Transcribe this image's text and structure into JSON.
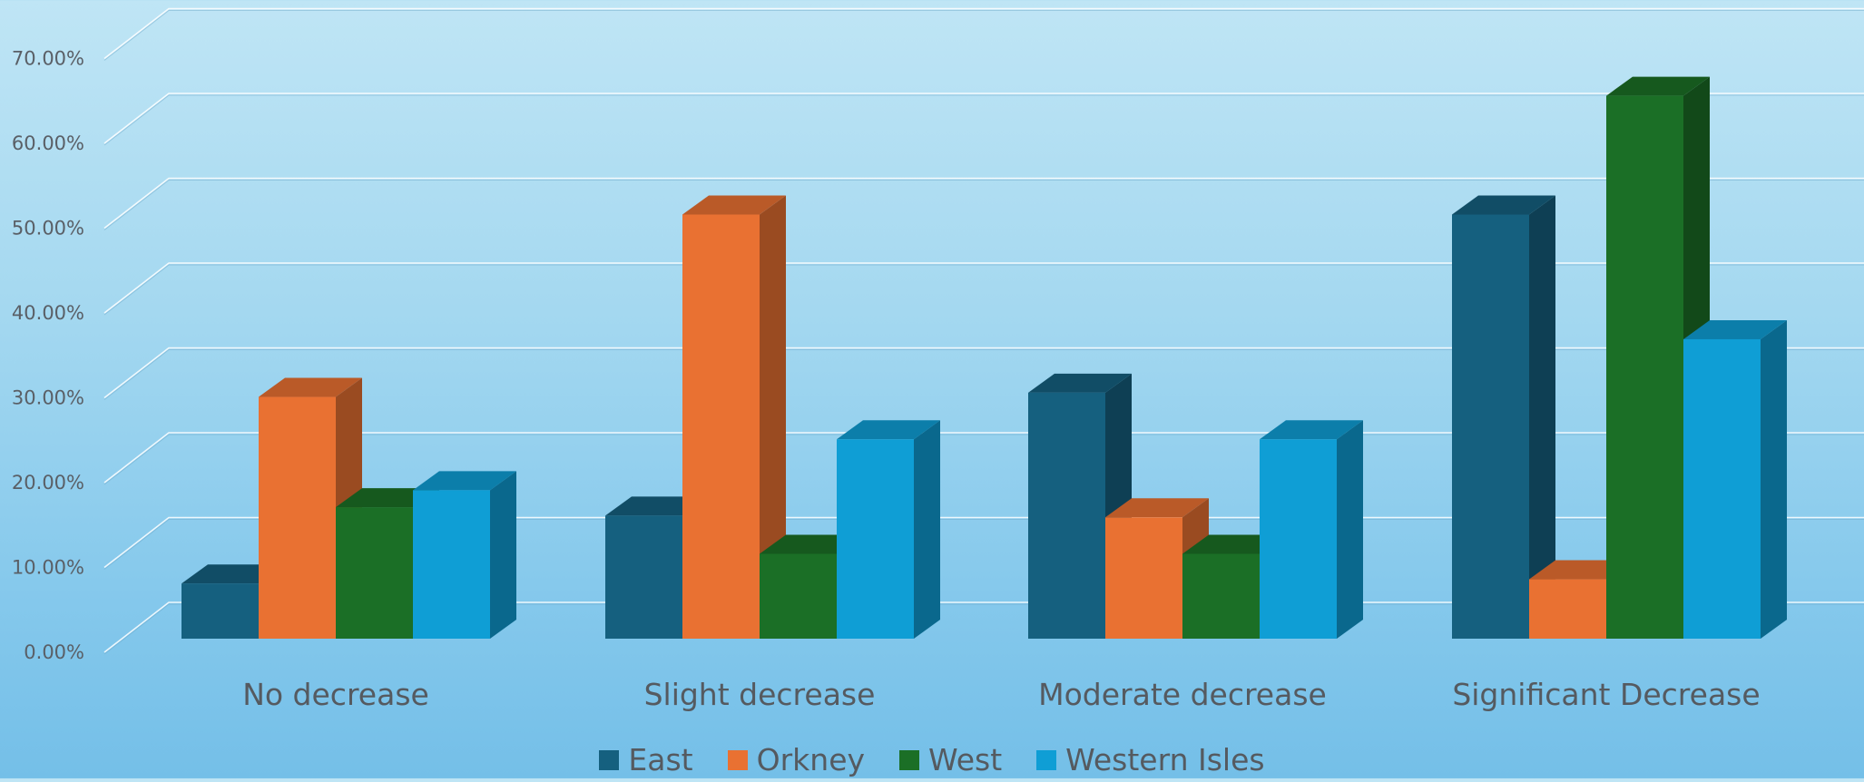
{
  "chart_data": {
    "type": "bar",
    "style": "3d-clustered-column",
    "categories": [
      "No decrease",
      "Slight decrease",
      "Moderate decrease",
      "Significant Decrease"
    ],
    "series": [
      {
        "name": "East",
        "color": "#15607f",
        "values": [
          0.065,
          0.145,
          0.29,
          0.5
        ]
      },
      {
        "name": "Orkney",
        "color": "#e97132",
        "values": [
          0.285,
          0.5,
          0.143,
          0.07
        ]
      },
      {
        "name": "West",
        "color": "#1b6f26",
        "values": [
          0.155,
          0.1,
          0.1,
          0.64
        ]
      },
      {
        "name": "Western Isles",
        "color": "#0f9ed5",
        "values": [
          0.175,
          0.235,
          0.235,
          0.353
        ]
      }
    ],
    "y_ticks": [
      "0.00%",
      "10.00%",
      "20.00%",
      "30.00%",
      "40.00%",
      "50.00%",
      "60.00%",
      "70.00%"
    ],
    "ylim": [
      0,
      0.7
    ],
    "grid": true,
    "legend_position": "bottom"
  }
}
